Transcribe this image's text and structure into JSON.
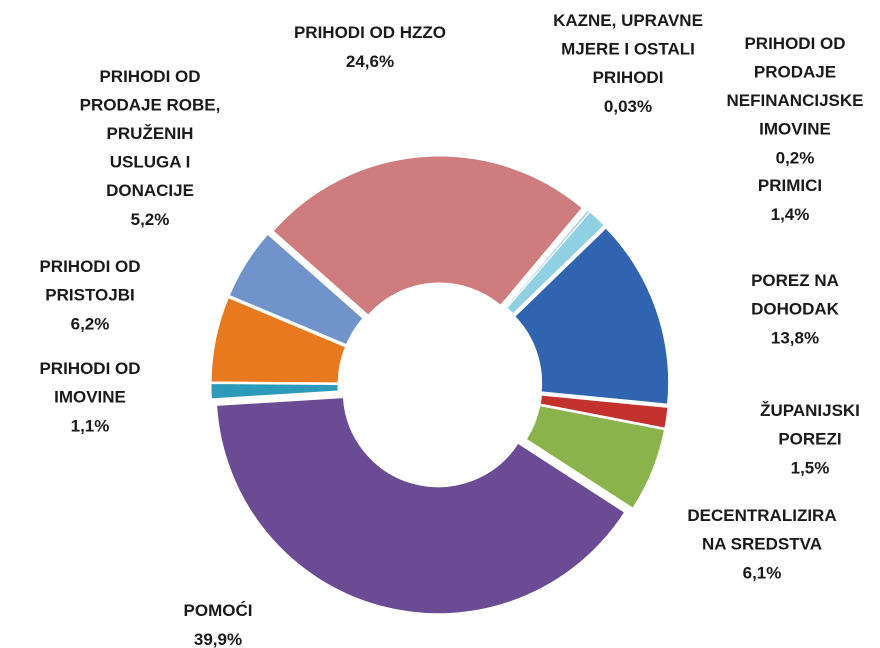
{
  "chart_data": {
    "type": "donut",
    "categories": [
      "KAZNE, UPRAVNE\nMJERE I OSTALI\nPRIHODI",
      "PRIHODI OD\nPRODAJE\nNEFINANCIJSKE\nIMOVINE",
      "PRIMICI",
      "POREZ NA\nDOHODAK",
      "ŽUPANIJSKI\nPOREZI",
      "DECENTRALIZIRA\nNA SREDSTVA",
      "POMOĆI",
      "PRIHODI OD\nIMOVINE",
      "PRIHODI OD\nPRISTOJBI",
      "PRIHODI OD\nPRODAJE ROBE,\nPRUŽENIH\nUSLUGA I\nDONACIJE",
      "PRIHODI OD HZZO"
    ],
    "values": [
      0.03,
      0.2,
      1.4,
      13.8,
      1.5,
      6.1,
      39.9,
      1.1,
      6.2,
      5.2,
      24.6
    ],
    "value_labels": [
      "0,03%",
      "0,2%",
      "1,4%",
      "13,8%",
      "1,5%",
      "6,1%",
      "39,9%",
      "1,1%",
      "6,2%",
      "5,2%",
      "24,6%"
    ],
    "colors": [
      "#6fb7cf",
      "#a9cfe2",
      "#8fd0e3",
      "#3064b0",
      "#c2312b",
      "#8bb34b",
      "#6a4b94",
      "#2b9bb9",
      "#e8791f",
      "#7193cc",
      "#cf7c7e"
    ]
  }
}
